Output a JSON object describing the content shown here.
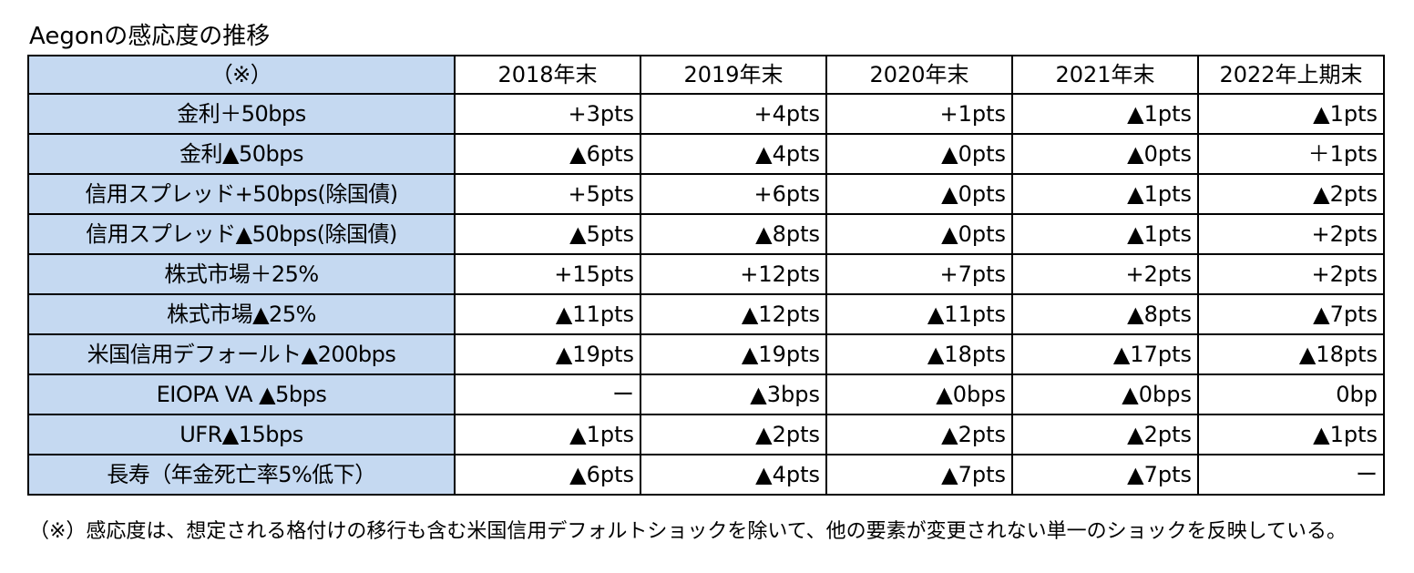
{
  "title": "Aegonの感応度の推移",
  "table": {
    "corner": "（※）",
    "columns": [
      "2018年末",
      "2019年末",
      "2020年末",
      "2021年末",
      "2022年上期末"
    ],
    "rows": [
      {
        "label": "金利＋50bps",
        "values": [
          "+3pts",
          "+4pts",
          "+1pts",
          "▲1pts",
          "▲1pts"
        ]
      },
      {
        "label": "金利▲50bps",
        "values": [
          "▲6pts",
          "▲4pts",
          "▲0pts",
          "▲0pts",
          "＋1pts"
        ]
      },
      {
        "label": "信用スプレッド+50bps(除国債)",
        "values": [
          "+5pts",
          "+6pts",
          "▲0pts",
          "▲1pts",
          "▲2pts"
        ]
      },
      {
        "label": "信用スプレッド▲50bps(除国債)",
        "values": [
          "▲5pts",
          "▲8pts",
          "▲0pts",
          "▲1pts",
          "+2pts"
        ]
      },
      {
        "label": "株式市場＋25%",
        "values": [
          "+15pts",
          "+12pts",
          "+7pts",
          "+2pts",
          "+2pts"
        ]
      },
      {
        "label": "株式市場▲25%",
        "values": [
          "▲11pts",
          "▲12pts",
          "▲11pts",
          "▲8pts",
          "▲7pts"
        ]
      },
      {
        "label": "米国信用デフォールト▲200bps",
        "values": [
          "▲19pts",
          "▲19pts",
          "▲18pts",
          "▲17pts",
          "▲18pts"
        ]
      },
      {
        "label": "EIOPA VA ▲5bps",
        "values": [
          "ー",
          "▲3bps",
          "▲0bps",
          "▲0bps",
          "0bp"
        ]
      },
      {
        "label": "UFR▲15bps",
        "values": [
          "▲1pts",
          "▲2pts",
          "▲2pts",
          "▲2pts",
          "▲1pts"
        ]
      },
      {
        "label": "長寿（年金死亡率5%低下）",
        "values": [
          "▲6pts",
          "▲4pts",
          "▲7pts",
          "▲7pts",
          "ー"
        ]
      }
    ]
  },
  "footnote": "（※）感応度は、想定される格付けの移行も含む米国信用デフォルトショックを除いて、他の要素が変更されない単一のショックを反映している。",
  "colors": {
    "label_bg": "#c5d9f1",
    "border": "#000000"
  }
}
